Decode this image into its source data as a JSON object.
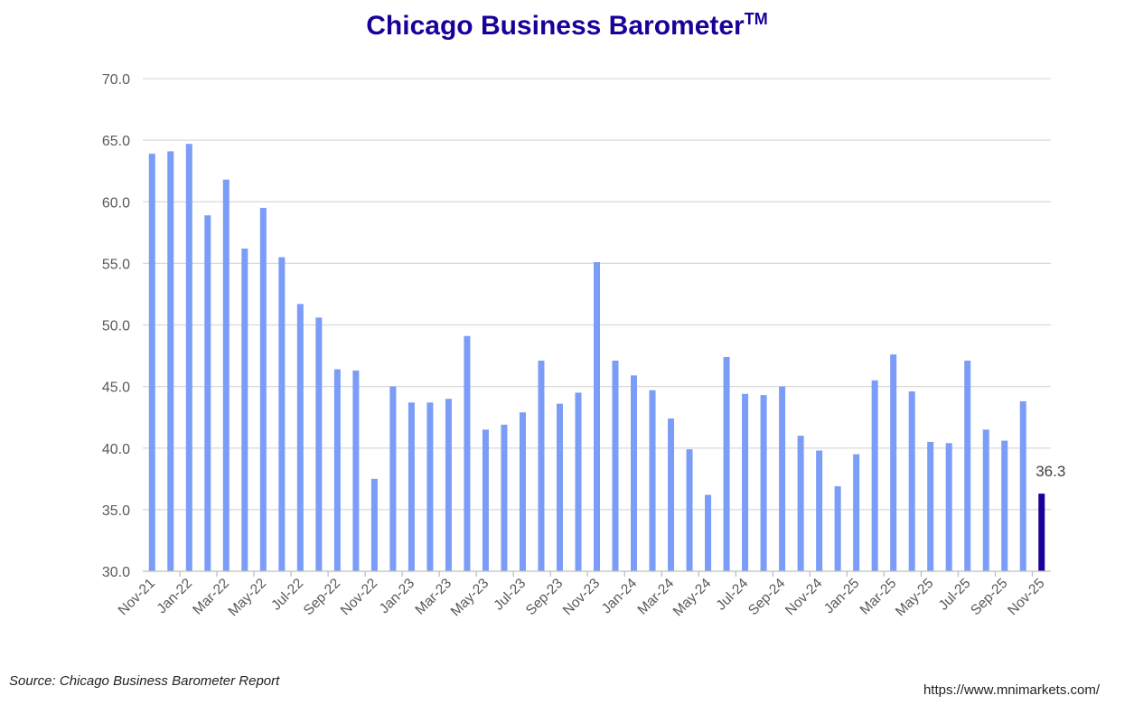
{
  "chart_data": {
    "type": "bar",
    "title": "Chicago Business Barometer",
    "title_mark": "TM",
    "xlabel": "",
    "ylabel": "",
    "ylim": [
      30,
      70
    ],
    "yticks": [
      "30.0",
      "35.0",
      "40.0",
      "45.0",
      "50.0",
      "55.0",
      "60.0",
      "65.0",
      "70.0"
    ],
    "grid": true,
    "bar_color": "#7b9cf7",
    "highlight_color": "#1a0099",
    "grid_color": "#d9d9d9",
    "categories": [
      "Nov-21",
      "Dec-21",
      "Jan-22",
      "Feb-22",
      "Mar-22",
      "Apr-22",
      "May-22",
      "Jun-22",
      "Jul-22",
      "Aug-22",
      "Sep-22",
      "Oct-22",
      "Nov-22",
      "Dec-22",
      "Jan-23",
      "Feb-23",
      "Mar-23",
      "Apr-23",
      "May-23",
      "Jun-23",
      "Jul-23",
      "Aug-23",
      "Sep-23",
      "Oct-23",
      "Nov-23",
      "Dec-23",
      "Jan-24",
      "Feb-24",
      "Mar-24",
      "Apr-24",
      "May-24",
      "Jun-24",
      "Jul-24",
      "Aug-24",
      "Sep-24",
      "Oct-24",
      "Nov-24",
      "Dec-24",
      "Jan-25",
      "Feb-25",
      "Mar-25",
      "Apr-25",
      "May-25",
      "Jun-25",
      "Jul-25",
      "Aug-25",
      "Sep-25",
      "Oct-25",
      "Nov-25"
    ],
    "values": [
      63.9,
      64.1,
      64.7,
      58.9,
      61.8,
      56.2,
      59.5,
      55.5,
      51.7,
      50.6,
      46.4,
      46.3,
      37.5,
      45.0,
      43.7,
      43.7,
      44.0,
      49.1,
      41.5,
      41.9,
      42.9,
      47.1,
      43.6,
      44.5,
      55.1,
      47.1,
      45.9,
      44.7,
      42.4,
      39.9,
      36.2,
      47.4,
      44.4,
      44.3,
      45.0,
      41.0,
      39.8,
      36.9,
      39.5,
      45.5,
      47.6,
      44.6,
      40.5,
      40.4,
      47.1,
      41.5,
      40.6,
      43.8,
      36.3
    ],
    "x_tick_labels": [
      "Nov-21",
      "Jan-22",
      "Mar-22",
      "May-22",
      "Jul-22",
      "Sep-22",
      "Nov-22",
      "Jan-23",
      "Mar-23",
      "May-23",
      "Jul-23",
      "Sep-23",
      "Nov-23",
      "Jan-24",
      "Mar-24",
      "May-24",
      "Jul-24",
      "Sep-24",
      "Nov-24",
      "Jan-25",
      "Mar-25",
      "May-25",
      "Jul-25",
      "Sep-25",
      "Nov-25"
    ],
    "highlight_label": "36.3"
  },
  "footer": {
    "source": "Source: Chicago Business Barometer Report",
    "url": "https://www.mnimarkets.com/"
  }
}
